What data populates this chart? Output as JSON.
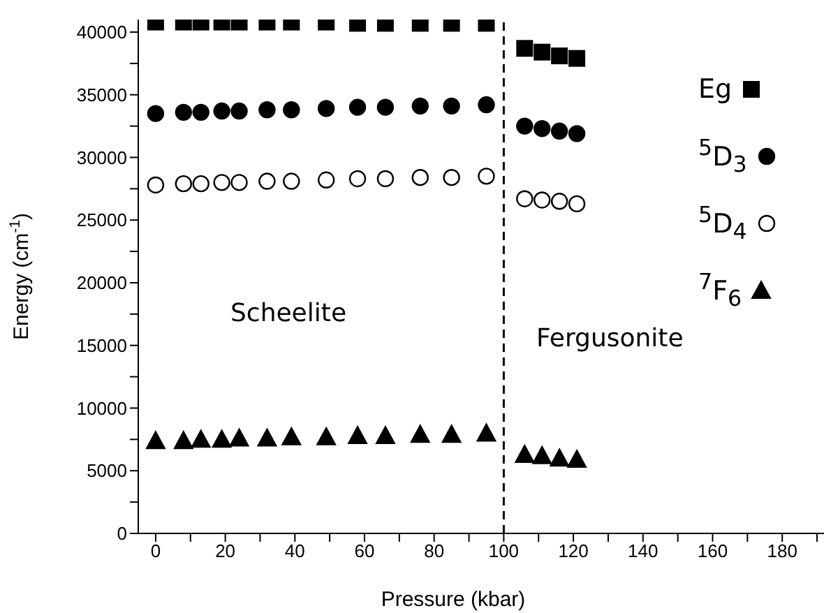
{
  "chart_data": {
    "type": "scatter",
    "xlabel": "Pressure (kbar)",
    "ylabel": "Energy (cm$^{-1}$)",
    "x": [
      0,
      8,
      13,
      19,
      24,
      32,
      39,
      49,
      58,
      66,
      76,
      85,
      95,
      106,
      111,
      116,
      121
    ],
    "series": [
      {
        "name": "Eg",
        "color": "#000000",
        "marker": "square",
        "values": [
          40800,
          40800,
          40800,
          40800,
          40800,
          40800,
          40800,
          40800,
          40700,
          40700,
          40700,
          40700,
          40700,
          38700,
          38400,
          38100,
          37900
        ]
      },
      {
        "name": "$^{5}$D$_{3}$",
        "color": "#000000",
        "marker": "circle",
        "values": [
          33500,
          33600,
          33600,
          33700,
          33700,
          33800,
          33800,
          33900,
          34000,
          34000,
          34100,
          34100,
          34200,
          32500,
          32300,
          32100,
          31900
        ]
      },
      {
        "name": "$^{5}$D$_{4}$",
        "color": "#ffffff",
        "marker": "circle",
        "values": [
          27800,
          27900,
          27900,
          28000,
          28000,
          28100,
          28100,
          28200,
          28300,
          28300,
          28400,
          28400,
          28500,
          26700,
          26600,
          26500,
          26300
        ]
      },
      {
        "name": "$^{7}$F$_{6}$",
        "color": "#000000",
        "marker": "triangle",
        "values": [
          7400,
          7400,
          7500,
          7500,
          7600,
          7600,
          7700,
          7700,
          7800,
          7800,
          7900,
          7900,
          8000,
          6300,
          6200,
          6000,
          5900
        ]
      }
    ],
    "xlim": [
      -5,
      192
    ],
    "xticks": [
      0,
      {
        "value": 10,
        "label": null
      },
      20,
      {
        "value": 30,
        "label": null
      },
      40,
      {
        "value": 50,
        "label": null
      },
      60,
      {
        "value": 70,
        "label": null
      },
      80,
      {
        "value": 90,
        "label": null
      },
      100,
      {
        "value": 110,
        "label": null
      },
      120,
      {
        "value": 130,
        "label": null
      },
      140,
      {
        "value": 150,
        "label": null
      },
      160,
      {
        "value": 170,
        "label": null
      },
      180,
      {
        "value": 190,
        "label": null
      }
    ],
    "ylim": [
      0,
      41000
    ],
    "yticks": [
      0,
      {
        "value": 2500,
        "label": null
      },
      5000,
      {
        "value": 7500,
        "label": null
      },
      10000,
      {
        "value": 12500,
        "label": null
      },
      15000,
      {
        "value": 17500,
        "label": null
      },
      20000,
      {
        "value": 22500,
        "label": null
      },
      25000,
      {
        "value": 27500,
        "label": null
      },
      30000,
      {
        "value": 32500,
        "label": null
      },
      35000,
      {
        "value": 37500,
        "label": null
      },
      40000
    ],
    "ref_lines": [
      {
        "axis": "x",
        "value": 100,
        "line_style": "dashed",
        "color": "#000000"
      }
    ],
    "annotations": [
      "Scheelite",
      "Fergusonite"
    ],
    "grid": false,
    "legend": "right"
  }
}
